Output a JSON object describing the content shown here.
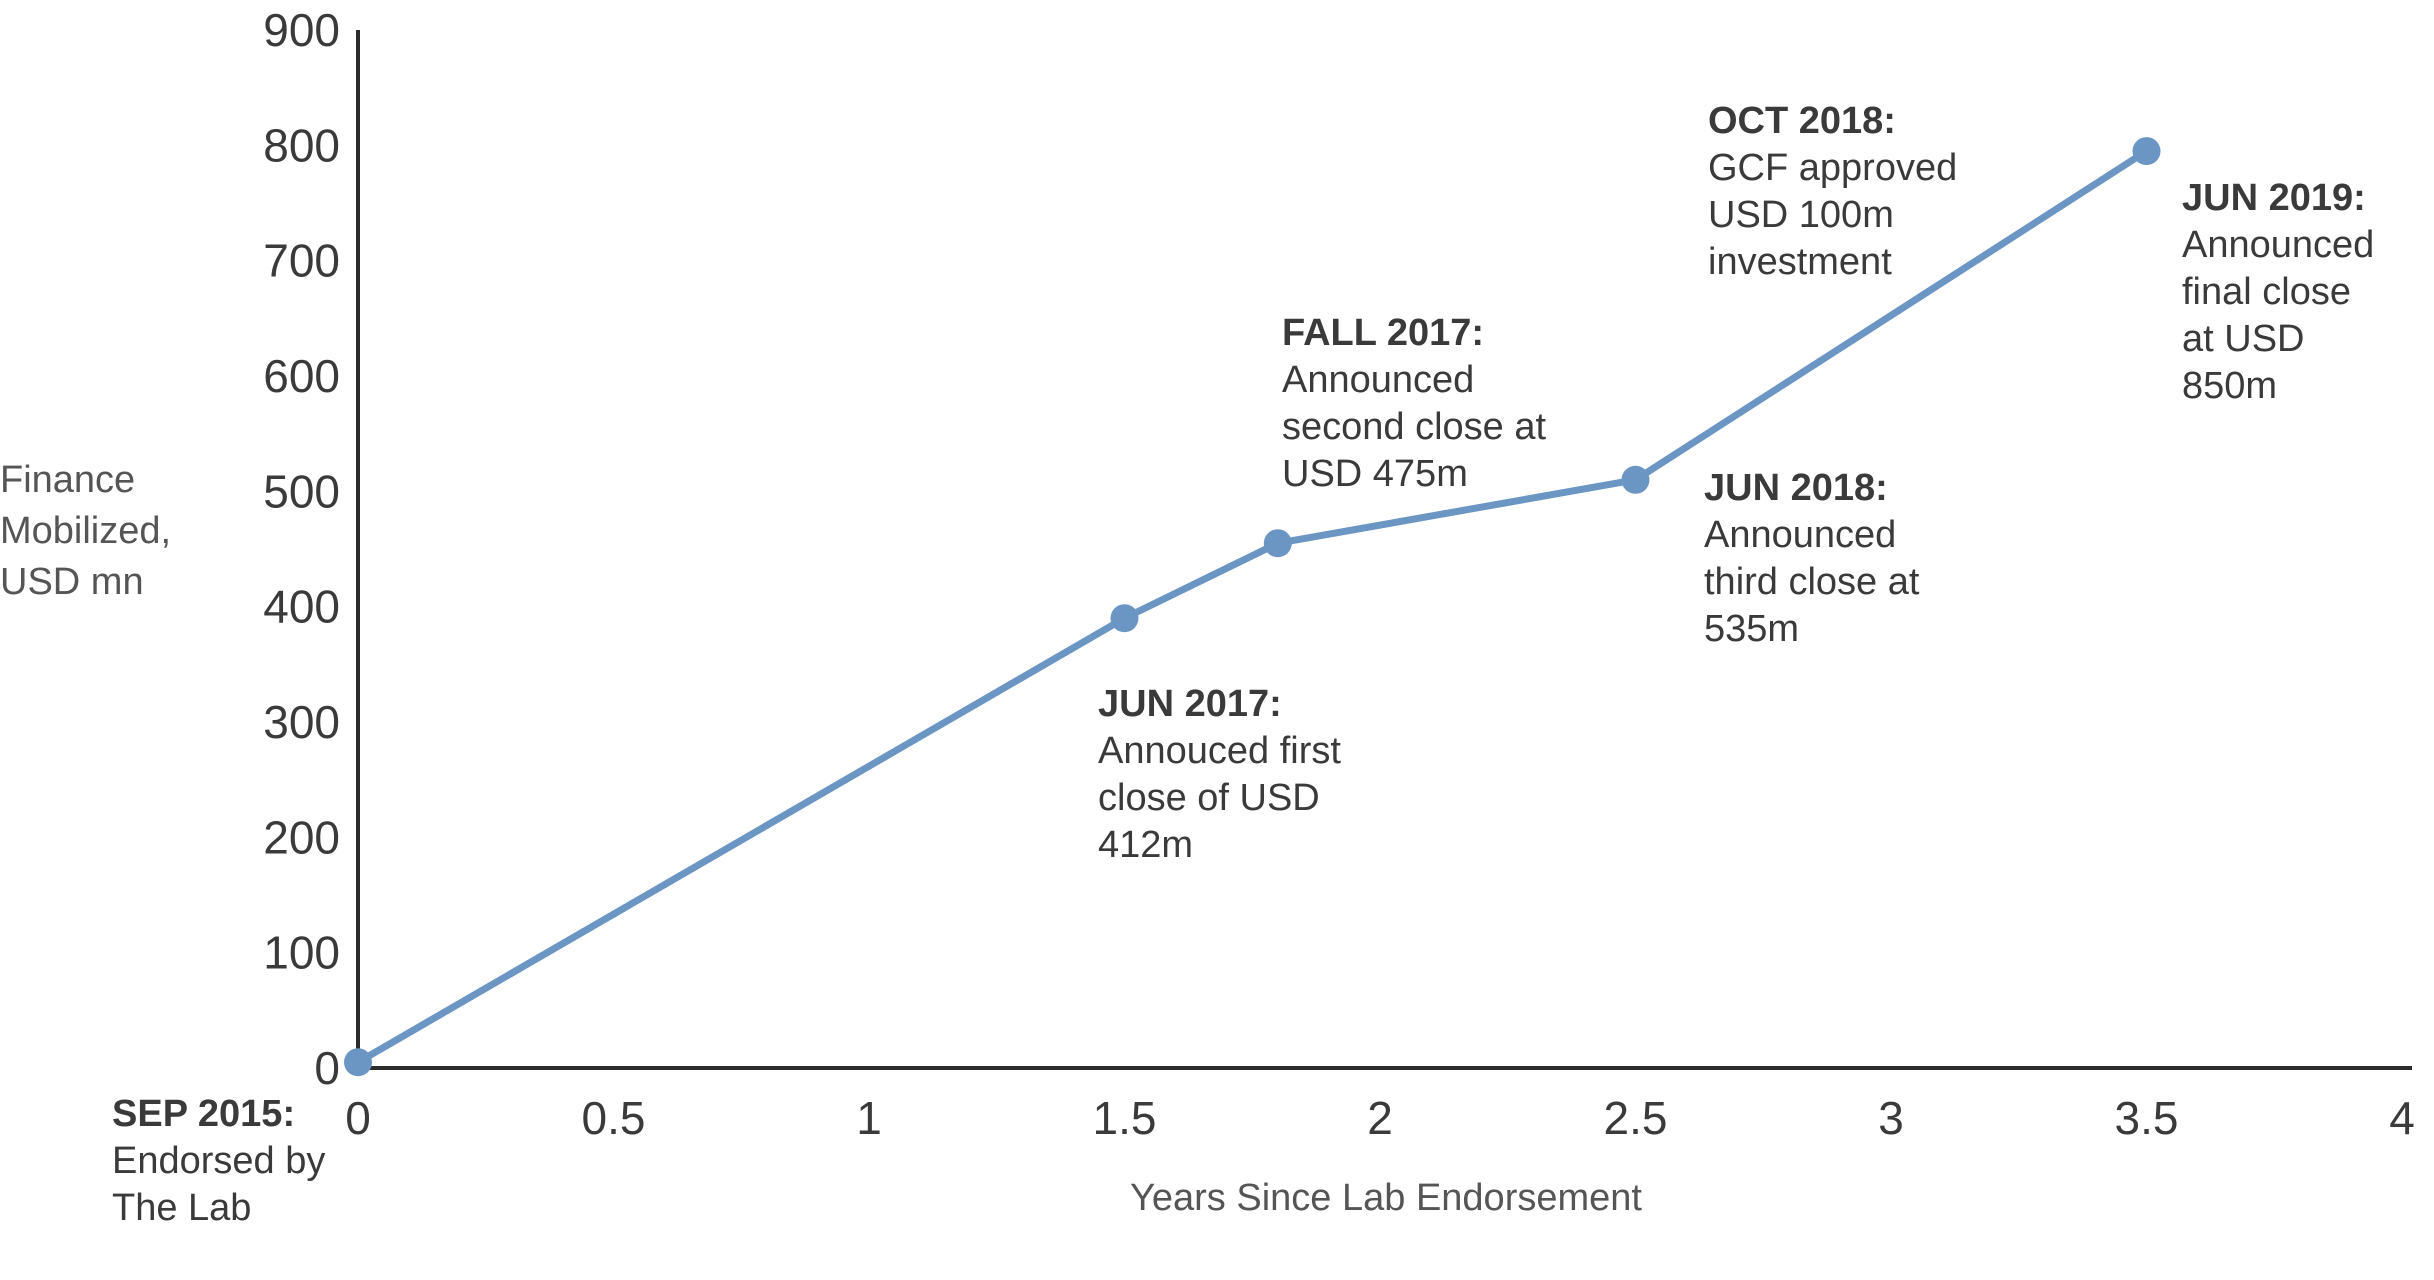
{
  "chart_data": {
    "type": "line",
    "xlabel": "Years Since Lab Endorsement",
    "ylabel_lines": [
      "Finance",
      "Mobilized,",
      "USD mn"
    ],
    "xlim": [
      0,
      4
    ],
    "ylim": [
      0,
      900
    ],
    "x_ticks": [
      "0",
      "0.5",
      "1",
      "1.5",
      "2",
      "2.5",
      "3",
      "3.5",
      "4"
    ],
    "y_ticks": [
      "0",
      "100",
      "200",
      "300",
      "400",
      "500",
      "600",
      "700",
      "800",
      "900"
    ],
    "series": [
      {
        "color": "#6b96c3",
        "points": [
          {
            "x": 0,
            "y": 5
          },
          {
            "x": 1.5,
            "y": 390
          },
          {
            "x": 1.8,
            "y": 455
          },
          {
            "x": 2.5,
            "y": 510
          },
          {
            "x": 3.5,
            "y": 795
          }
        ]
      }
    ],
    "annotations": [
      {
        "head": "SEP 2015:",
        "lines": [
          "Endorsed by",
          "The Lab"
        ]
      },
      {
        "head": "JUN 2017:",
        "lines": [
          "Annouced first",
          "close of USD",
          "412m"
        ]
      },
      {
        "head": "FALL 2017:",
        "lines": [
          "Announced",
          "second close at",
          "USD 475m"
        ]
      },
      {
        "head": "JUN 2018:",
        "lines": [
          "Announced",
          "third close at",
          "535m"
        ]
      },
      {
        "head": "OCT 2018:",
        "lines": [
          "GCF approved",
          "USD 100m",
          "investment"
        ]
      },
      {
        "head": "JUN 2019:",
        "lines": [
          "Announced",
          "final close",
          "at USD",
          "850m"
        ]
      }
    ],
    "grid": false,
    "legend": "none"
  }
}
